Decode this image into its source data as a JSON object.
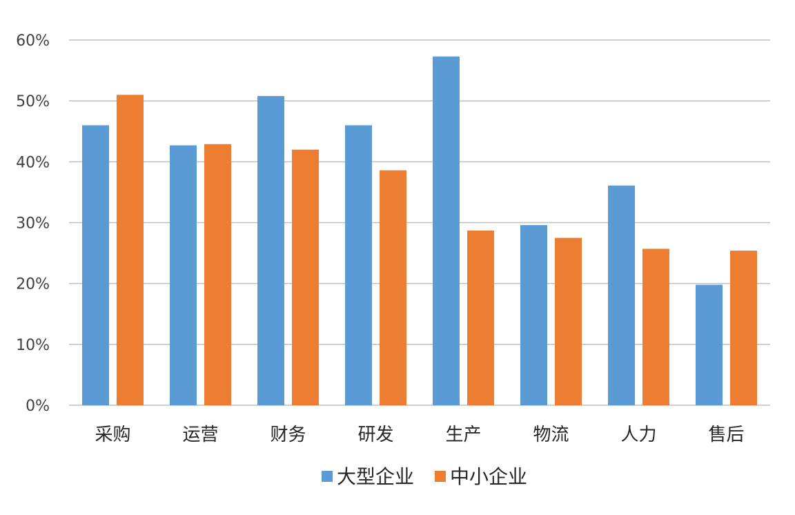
{
  "chart_data": {
    "type": "bar",
    "categories": [
      "采购",
      "运营",
      "财务",
      "研发",
      "生产",
      "物流",
      "人力",
      "售后"
    ],
    "series": [
      {
        "name": "大型企业",
        "color": "#5b9bd5",
        "values": [
          46,
          42.7,
          50.8,
          46,
          57.3,
          29.6,
          36.1,
          19.8
        ]
      },
      {
        "name": "中小企业",
        "color": "#ed7d31",
        "values": [
          51,
          42.9,
          42,
          38.6,
          28.7,
          27.5,
          25.7,
          25.4
        ]
      }
    ],
    "ylim": [
      0,
      60
    ],
    "yticks": [
      "0%",
      "10%",
      "20%",
      "30%",
      "40%",
      "50%",
      "60%"
    ],
    "ytick_values": [
      0,
      10,
      20,
      30,
      40,
      50,
      60
    ],
    "grid": true,
    "legend": "bottom-center",
    "title": "",
    "xlabel": "",
    "ylabel": ""
  }
}
